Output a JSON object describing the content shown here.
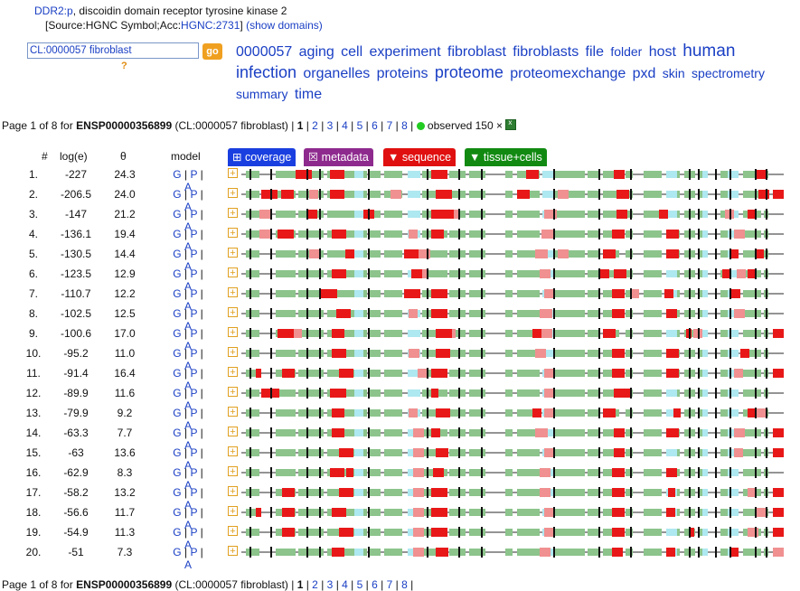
{
  "header": {
    "gene": "DDR2:p",
    "description": ", discoidin domain receptor tyrosine kinase 2",
    "source_prefix": "[Source:HGNC Symbol;Acc:",
    "source_link": "HGNC:2731",
    "source_suffix": "]",
    "show_domains": "(show domains)"
  },
  "search": {
    "value": "CL:0000057 fibroblast",
    "go_label": "go",
    "help": "?"
  },
  "tag_cloud": [
    {
      "t": "0000057",
      "s": 16
    },
    {
      "t": "aging",
      "s": 16
    },
    {
      "t": "cell",
      "s": 16
    },
    {
      "t": "experiment",
      "s": 16
    },
    {
      "t": "fibroblast",
      "s": 16
    },
    {
      "t": "fibroblasts",
      "s": 16
    },
    {
      "t": "file",
      "s": 16
    },
    {
      "t": "folder",
      "s": 14
    },
    {
      "t": "host",
      "s": 16
    },
    {
      "t": "human",
      "s": 19
    },
    {
      "t": "infection",
      "s": 18
    },
    {
      "t": "organelles",
      "s": 16
    },
    {
      "t": "proteins",
      "s": 16
    },
    {
      "t": "proteome",
      "s": 18
    },
    {
      "t": "proteomexchange",
      "s": 16
    },
    {
      "t": "pxd",
      "s": 16
    },
    {
      "t": "skin",
      "s": 14
    },
    {
      "t": "spectrometry",
      "s": 14
    },
    {
      "t": "summary",
      "s": 14
    },
    {
      "t": "time",
      "s": 16
    }
  ],
  "pager": {
    "prefix": "Page 1 of 8 for ",
    "protein": "ENSP00000356899",
    "context": " (CL:0000057 fibroblast) | ",
    "current": "1",
    "pages": [
      "2",
      "3",
      "4",
      "5",
      "6",
      "7",
      "8"
    ],
    "observed": "observed 150 ×"
  },
  "columns": {
    "num": "#",
    "loge": "log(e)",
    "theta": "θ",
    "model": "model"
  },
  "tabs": [
    {
      "label": "⊞ coverage",
      "color": "#1a3fe0"
    },
    {
      "label": "☒ metadata",
      "color": "#8e2a8e"
    },
    {
      "label": "▼ sequence",
      "color": "#e01010"
    },
    {
      "label": "▼ tissue+cells",
      "color": "#128a12"
    }
  ],
  "model_links": [
    "G",
    "P",
    "A"
  ],
  "rows": [
    {
      "n": "1.",
      "e": "-227",
      "t": "24.3"
    },
    {
      "n": "2.",
      "e": "-206.5",
      "t": "24.0"
    },
    {
      "n": "3.",
      "e": "-147",
      "t": "21.2"
    },
    {
      "n": "4.",
      "e": "-136.1",
      "t": "19.4"
    },
    {
      "n": "5.",
      "e": "-130.5",
      "t": "14.4"
    },
    {
      "n": "6.",
      "e": "-123.5",
      "t": "12.9"
    },
    {
      "n": "7.",
      "e": "-110.7",
      "t": "12.2"
    },
    {
      "n": "8.",
      "e": "-102.5",
      "t": "12.5"
    },
    {
      "n": "9.",
      "e": "-100.6",
      "t": "17.0"
    },
    {
      "n": "10.",
      "e": "-95.2",
      "t": "11.0"
    },
    {
      "n": "11.",
      "e": "-91.4",
      "t": "16.4"
    },
    {
      "n": "12.",
      "e": "-89.9",
      "t": "11.6"
    },
    {
      "n": "13.",
      "e": "-79.9",
      "t": "9.2"
    },
    {
      "n": "14.",
      "e": "-63.3",
      "t": "7.7"
    },
    {
      "n": "15.",
      "e": "-63",
      "t": "13.6"
    },
    {
      "n": "16.",
      "e": "-62.9",
      "t": "8.3"
    },
    {
      "n": "17.",
      "e": "-58.2",
      "t": "13.2"
    },
    {
      "n": "18.",
      "e": "-56.6",
      "t": "11.7"
    },
    {
      "n": "19.",
      "e": "-54.9",
      "t": "11.3"
    },
    {
      "n": "20.",
      "e": "-51",
      "t": "7.3"
    }
  ],
  "colors": {
    "domain_green": "#8cc48c",
    "tm_cyan": "#aee8f0",
    "obs_red": "#e81818",
    "obs_pink": "#f09090",
    "line": "#555555"
  }
}
